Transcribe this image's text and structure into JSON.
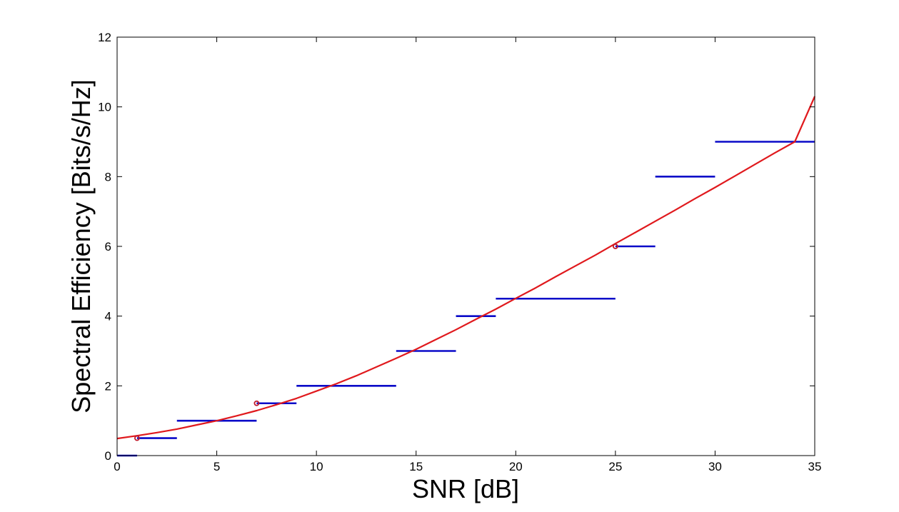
{
  "chart_data": {
    "type": "line",
    "title": "",
    "xlabel": "SNR [dB]",
    "ylabel": "Spectral Efficiency [Bits/s/Hz]",
    "xlim": [
      0,
      35
    ],
    "ylim": [
      0,
      12
    ],
    "xticks": [
      0,
      5,
      10,
      15,
      20,
      25,
      30,
      35
    ],
    "yticks": [
      0,
      2,
      4,
      6,
      8,
      10,
      12
    ],
    "grid": false,
    "legend": "none",
    "colors": {
      "curve": "#e0191d",
      "steps": "#0a0ac8",
      "markers": "#c0182a"
    },
    "series": [
      {
        "style": "line",
        "color": "#e0191d",
        "x": [
          0,
          1,
          2,
          3,
          4,
          5,
          6,
          7,
          8,
          9,
          10,
          11,
          12,
          13,
          14,
          15,
          16,
          17,
          18,
          19,
          20,
          21,
          22,
          23,
          24,
          25,
          26,
          27,
          28,
          29,
          30,
          31,
          32,
          33,
          34,
          35
        ],
        "y": [
          0.49,
          0.57,
          0.66,
          0.76,
          0.88,
          1.0,
          1.14,
          1.29,
          1.46,
          1.64,
          1.85,
          2.06,
          2.29,
          2.54,
          2.79,
          3.05,
          3.33,
          3.61,
          3.91,
          4.2,
          4.51,
          4.81,
          5.13,
          5.44,
          5.75,
          6.08,
          6.4,
          6.72,
          7.04,
          7.37,
          7.69,
          8.02,
          8.35,
          8.68,
          9.0,
          10.3
        ]
      },
      {
        "style": "step",
        "color": "#0a0ac8",
        "segments": [
          {
            "x0": 0,
            "x1": 1,
            "y": 0
          },
          {
            "x0": 1,
            "x1": 3,
            "y": 0.5
          },
          {
            "x0": 3,
            "x1": 7,
            "y": 1.0
          },
          {
            "x0": 7,
            "x1": 9,
            "y": 1.5
          },
          {
            "x0": 9,
            "x1": 14,
            "y": 2.0
          },
          {
            "x0": 14,
            "x1": 17,
            "y": 3.0
          },
          {
            "x0": 17,
            "x1": 19,
            "y": 4.0
          },
          {
            "x0": 19,
            "x1": 25,
            "y": 4.5
          },
          {
            "x0": 25,
            "x1": 27,
            "y": 6.0
          },
          {
            "x0": 27,
            "x1": 30,
            "y": 8.0
          },
          {
            "x0": 30,
            "x1": 35,
            "y": 9.0
          }
        ]
      },
      {
        "style": "scatter",
        "color": "#c0182a",
        "points": [
          {
            "x": 1,
            "y": 0.5
          },
          {
            "x": 7,
            "y": 1.5
          },
          {
            "x": 25,
            "y": 6.0
          }
        ]
      }
    ]
  }
}
